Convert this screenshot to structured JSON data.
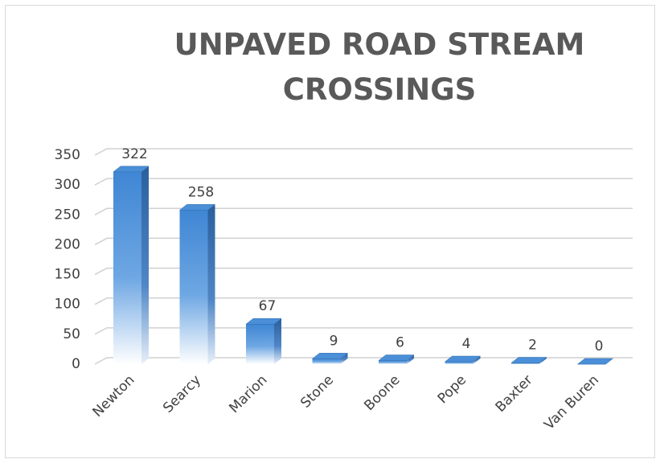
{
  "chart_data": {
    "type": "bar3d",
    "title": "UNPAVED ROAD STREAM CROSSINGS",
    "categories": [
      "Newton",
      "Searcy",
      "Marion",
      "Stone",
      "Boone",
      "Pope",
      "Baxter",
      "Van Buren"
    ],
    "values": [
      322,
      258,
      67,
      9,
      6,
      4,
      2,
      0
    ],
    "color": "#3f86d4",
    "ylim": [
      0,
      350
    ],
    "yticks": [
      0,
      50,
      100,
      150,
      200,
      250,
      300,
      350
    ],
    "grid": true
  }
}
